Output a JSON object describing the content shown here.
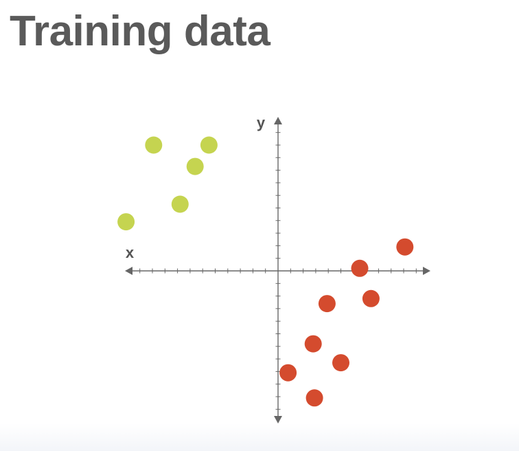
{
  "page": {
    "title": "Training data"
  },
  "chart_data": {
    "type": "scatter",
    "title": "",
    "xlabel": "x",
    "ylabel": "y",
    "xlim": [
      -12,
      12
    ],
    "ylim": [
      -12,
      12
    ],
    "grid": false,
    "series": [
      {
        "color": "#c5d450",
        "points": [
          [
            -9.9,
            10.0
          ],
          [
            -5.5,
            10.0
          ],
          [
            -6.6,
            8.3
          ],
          [
            -7.8,
            5.3
          ],
          [
            -12.1,
            3.9
          ]
        ]
      },
      {
        "color": "#d44b2e",
        "points": [
          [
            10.1,
            1.9
          ],
          [
            6.5,
            0.2
          ],
          [
            3.9,
            -2.6
          ],
          [
            7.4,
            -2.2
          ],
          [
            2.8,
            -5.8
          ],
          [
            5.0,
            -7.3
          ],
          [
            0.8,
            -8.1
          ],
          [
            2.9,
            -10.1
          ]
        ]
      }
    ]
  }
}
